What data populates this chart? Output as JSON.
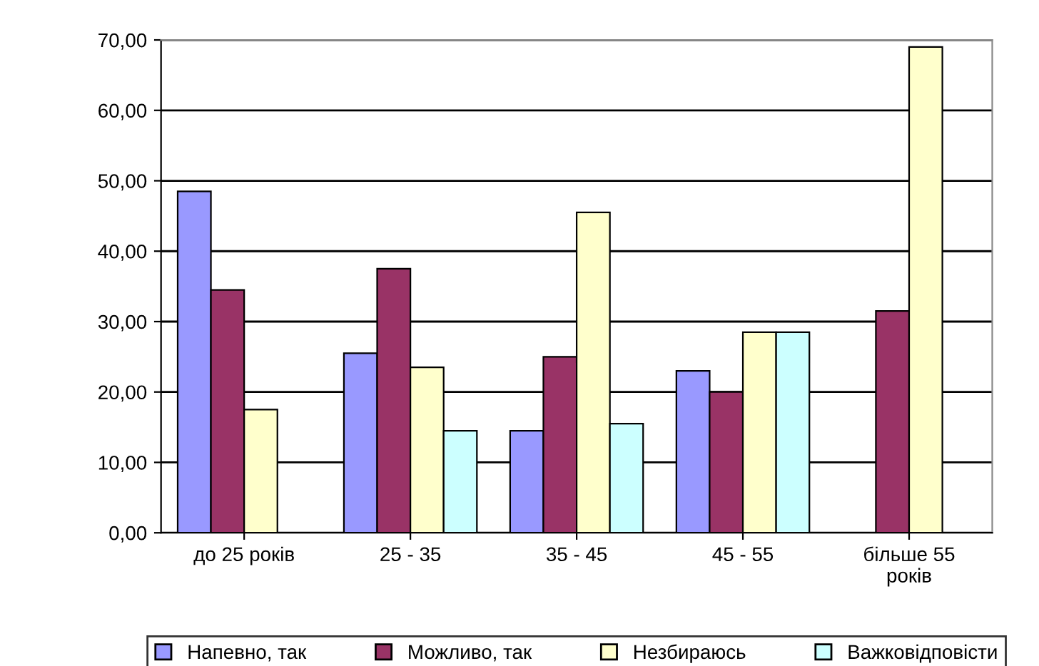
{
  "chart_data": {
    "type": "bar",
    "categories": [
      "до 25 років",
      "25 - 35",
      "35 - 45",
      "45 - 55",
      "більше 55\nроків"
    ],
    "series": [
      {
        "name": "Напевно, так",
        "color": "#9999ff",
        "values": [
          48.5,
          25.5,
          14.5,
          23,
          0
        ]
      },
      {
        "name": "Можливо, так",
        "color": "#993366",
        "values": [
          34.5,
          37.5,
          25,
          20,
          31.5
        ]
      },
      {
        "name": "Незбираюсь",
        "color": "#ffffcc",
        "values": [
          17.5,
          23.5,
          45.5,
          28.5,
          69
        ]
      },
      {
        "name": "Важковідповісти",
        "color": "#ccffff",
        "values": [
          0,
          14.5,
          15.5,
          28.5,
          0
        ]
      }
    ],
    "ylim": [
      0,
      70
    ],
    "yticks": [
      {
        "value": 0,
        "label": "0,00"
      },
      {
        "value": 10,
        "label": "10,00"
      },
      {
        "value": 20,
        "label": "20,00"
      },
      {
        "value": 30,
        "label": "30,00"
      },
      {
        "value": 40,
        "label": "40,00"
      },
      {
        "value": 50,
        "label": "50,00"
      },
      {
        "value": 60,
        "label": "60,00"
      },
      {
        "value": 70,
        "label": "70,00"
      }
    ],
    "grid": "y",
    "legend": "bottom"
  }
}
